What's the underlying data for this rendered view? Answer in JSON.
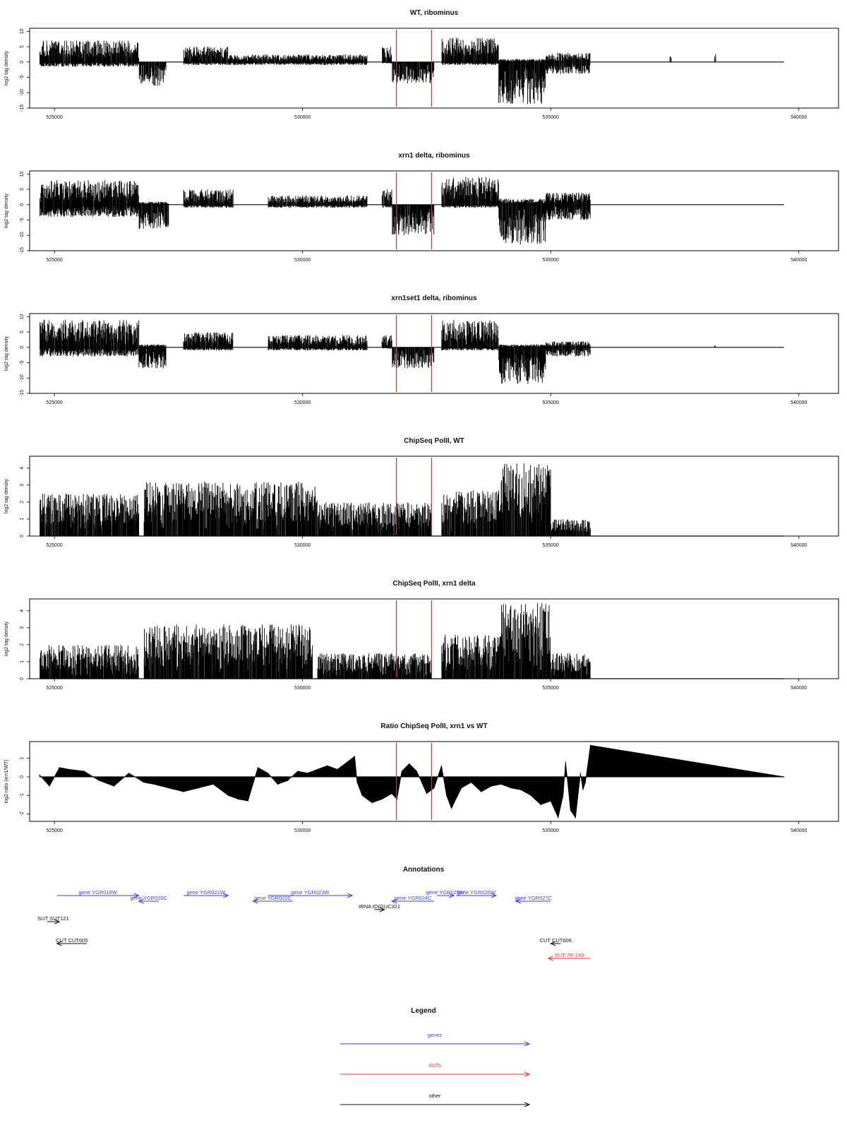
{
  "chart_data": [
    {
      "type": "bar",
      "title": "WT, ribominus",
      "ylabel": "log2 tag density",
      "xlim": [
        524500,
        540800
      ],
      "ylim": [
        -15,
        11
      ],
      "xticks": [
        525000,
        530000,
        535000,
        540000
      ],
      "yticks": [
        -15,
        -10,
        -5,
        0,
        5,
        10
      ],
      "grid": false,
      "markers": [
        531890,
        532600
      ],
      "segments": [
        {
          "x0": 524700,
          "x1": 526700,
          "top": 7,
          "bottom": -1.5
        },
        {
          "x0": 526700,
          "x1": 527250,
          "top": 0,
          "bottom": -8
        },
        {
          "x0": 527600,
          "x1": 528500,
          "top": 5,
          "bottom": -1
        },
        {
          "x0": 528500,
          "x1": 531300,
          "top": 2.5,
          "bottom": -1
        },
        {
          "x0": 531600,
          "x1": 531800,
          "top": 5,
          "bottom": -0.5
        },
        {
          "x0": 531800,
          "x1": 532650,
          "top": 0,
          "bottom": -7
        },
        {
          "x0": 532800,
          "x1": 533950,
          "top": 8,
          "bottom": -1
        },
        {
          "x0": 533950,
          "x1": 534900,
          "top": 1,
          "bottom": -14
        },
        {
          "x0": 534900,
          "x1": 535800,
          "top": 3,
          "bottom": -4
        },
        {
          "x0": 537400,
          "x1": 537430,
          "top": 2,
          "bottom": 0
        },
        {
          "x0": 538300,
          "x1": 538330,
          "top": 3,
          "bottom": 0
        }
      ]
    },
    {
      "type": "bar",
      "title": "xrn1 delta, ribominus",
      "ylabel": "log2 tag density",
      "xlim": [
        524500,
        540800
      ],
      "ylim": [
        -15,
        11
      ],
      "xticks": [
        525000,
        530000,
        535000,
        540000
      ],
      "yticks": [
        -15,
        -10,
        -5,
        0,
        5,
        10
      ],
      "grid": false,
      "markers": [
        531890,
        532600
      ],
      "segments": [
        {
          "x0": 524700,
          "x1": 526700,
          "top": 8,
          "bottom": -4
        },
        {
          "x0": 526700,
          "x1": 527300,
          "top": 1,
          "bottom": -8
        },
        {
          "x0": 527600,
          "x1": 528600,
          "top": 5,
          "bottom": -1
        },
        {
          "x0": 529300,
          "x1": 531300,
          "top": 3,
          "bottom": -1
        },
        {
          "x0": 531600,
          "x1": 531800,
          "top": 5,
          "bottom": -1
        },
        {
          "x0": 531800,
          "x1": 532650,
          "top": 0,
          "bottom": -10
        },
        {
          "x0": 532800,
          "x1": 533950,
          "top": 9,
          "bottom": -1
        },
        {
          "x0": 533950,
          "x1": 534900,
          "top": 2,
          "bottom": -13
        },
        {
          "x0": 534900,
          "x1": 535800,
          "top": 4,
          "bottom": -5
        }
      ]
    },
    {
      "type": "bar",
      "title": "xrn1set1 delta, ribominus",
      "ylabel": "log2 tag density",
      "xlim": [
        524500,
        540800
      ],
      "ylim": [
        -15,
        11
      ],
      "xticks": [
        525000,
        530000,
        535000,
        540000
      ],
      "yticks": [
        -15,
        -10,
        -5,
        0,
        5,
        10
      ],
      "grid": false,
      "markers": [
        531890,
        532600
      ],
      "segments": [
        {
          "x0": 524700,
          "x1": 526700,
          "top": 9,
          "bottom": -3
        },
        {
          "x0": 526700,
          "x1": 527250,
          "top": 1,
          "bottom": -7
        },
        {
          "x0": 527600,
          "x1": 528600,
          "top": 5,
          "bottom": -1
        },
        {
          "x0": 529300,
          "x1": 531300,
          "top": 4,
          "bottom": -1
        },
        {
          "x0": 531600,
          "x1": 531800,
          "top": 4,
          "bottom": -0.5
        },
        {
          "x0": 531800,
          "x1": 532650,
          "top": 0,
          "bottom": -7
        },
        {
          "x0": 532800,
          "x1": 533950,
          "top": 9,
          "bottom": -1
        },
        {
          "x0": 533950,
          "x1": 534900,
          "top": 1,
          "bottom": -12
        },
        {
          "x0": 534900,
          "x1": 535800,
          "top": 2,
          "bottom": -3
        },
        {
          "x0": 538300,
          "x1": 538330,
          "top": 1,
          "bottom": 0
        }
      ]
    },
    {
      "type": "bar",
      "title": "ChipSeq PolII, WT",
      "ylabel": "log2 tag density",
      "xlim": [
        524500,
        540800
      ],
      "ylim": [
        0,
        4.7
      ],
      "xticks": [
        525000,
        530000,
        535000,
        540000
      ],
      "yticks": [
        0,
        1,
        2,
        3,
        4
      ],
      "grid": false,
      "markers": [
        531890,
        532600
      ],
      "segments": [
        {
          "x0": 524700,
          "x1": 526700,
          "top": 2.5,
          "bottom": 0
        },
        {
          "x0": 526800,
          "x1": 530300,
          "top": 3.2,
          "bottom": 0
        },
        {
          "x0": 530300,
          "x1": 532600,
          "top": 2,
          "bottom": 0
        },
        {
          "x0": 532800,
          "x1": 534000,
          "top": 2.7,
          "bottom": 0
        },
        {
          "x0": 534000,
          "x1": 535000,
          "top": 4.3,
          "bottom": 0
        },
        {
          "x0": 535000,
          "x1": 535800,
          "top": 1,
          "bottom": 0
        }
      ]
    },
    {
      "type": "bar",
      "title": "ChipSeq PolII, xrn1 delta",
      "ylabel": "log2 tag density",
      "xlim": [
        524500,
        540800
      ],
      "ylim": [
        0,
        4.7
      ],
      "xticks": [
        525000,
        530000,
        535000,
        540000
      ],
      "yticks": [
        0,
        1,
        2,
        3,
        4
      ],
      "grid": false,
      "markers": [
        531890,
        532600
      ],
      "segments": [
        {
          "x0": 524700,
          "x1": 526700,
          "top": 2,
          "bottom": 0
        },
        {
          "x0": 526800,
          "x1": 530200,
          "top": 3.2,
          "bottom": 0
        },
        {
          "x0": 530300,
          "x1": 532600,
          "top": 1.5,
          "bottom": 0
        },
        {
          "x0": 532800,
          "x1": 534000,
          "top": 2.6,
          "bottom": 0
        },
        {
          "x0": 534000,
          "x1": 535000,
          "top": 4.5,
          "bottom": 0
        },
        {
          "x0": 535000,
          "x1": 535800,
          "top": 1.5,
          "bottom": 0
        }
      ]
    },
    {
      "type": "area",
      "title": "Ratio ChipSeq PolII, xrn1 vs WT",
      "ylabel": "log2 ratio (xrn1/WT)",
      "xlim": [
        524500,
        540800
      ],
      "ylim": [
        -2.4,
        1.9
      ],
      "xticks": [
        525000,
        530000,
        535000,
        540000
      ],
      "yticks": [
        -2,
        -1,
        0,
        1
      ],
      "grid": false,
      "markers": [
        531890,
        532600
      ],
      "x": [
        524700,
        524900,
        525100,
        525300,
        525600,
        525900,
        526200,
        526500,
        526800,
        527000,
        527300,
        527600,
        527900,
        528200,
        528500,
        528700,
        528900,
        529000,
        529100,
        529300,
        529500,
        529700,
        529900,
        530100,
        530300,
        530500,
        530700,
        530900,
        531050,
        531100,
        531200,
        531400,
        531600,
        531800,
        531900,
        532000,
        532150,
        532300,
        532500,
        532650,
        532800,
        532900,
        533000,
        533200,
        533400,
        533600,
        533800,
        534000,
        534200,
        534400,
        534600,
        534800,
        535000,
        535150,
        535250,
        535300,
        535400,
        535500,
        535600,
        535650,
        535700,
        535800,
        539700
      ],
      "values": [
        0.1,
        -0.5,
        0.5,
        0.4,
        0.3,
        -0.2,
        -0.5,
        0.2,
        -0.3,
        -0.4,
        -0.6,
        -0.8,
        -0.6,
        -0.4,
        -1.0,
        -1.2,
        -1.3,
        -0.4,
        0.5,
        0.2,
        -0.4,
        -0.2,
        0.3,
        0.2,
        0.4,
        0.6,
        0.4,
        0.8,
        1.1,
        -0.3,
        -1.0,
        -1.4,
        -1.2,
        -0.9,
        -1.2,
        0.3,
        0.7,
        0.3,
        -0.9,
        -0.6,
        0.6,
        -1.0,
        -1.7,
        -0.6,
        -0.3,
        -0.8,
        -0.5,
        -0.4,
        -0.6,
        -0.7,
        -1.0,
        -1.5,
        -1.3,
        -2.2,
        -1.0,
        0.8,
        -1.8,
        -2.2,
        0.2,
        -0.7,
        -0.3,
        1.7,
        0
      ]
    }
  ],
  "annotations": {
    "title": "Annotations",
    "items": [
      {
        "label": "gene YGR019W",
        "x0": 525050,
        "x1": 526700,
        "row": 0,
        "dir": "right",
        "color": "#3a3aff"
      },
      {
        "label": "gene YGR020C",
        "x0": 526700,
        "x1": 527100,
        "row": 1,
        "dir": "left",
        "color": "#3a3aff"
      },
      {
        "label": "gene YGR021W",
        "x0": 527600,
        "x1": 528500,
        "row": 0,
        "dir": "right",
        "color": "#3a3aff"
      },
      {
        "label": "gene YGR022C",
        "x0": 529000,
        "x1": 529800,
        "row": 1,
        "dir": "left",
        "color": "#3a3aff"
      },
      {
        "label": "gene YGR023W",
        "x0": 529300,
        "x1": 531000,
        "row": 0,
        "dir": "right",
        "color": "#3a3aff"
      },
      {
        "label": "gene YGR024C",
        "x0": 531800,
        "x1": 532650,
        "row": 1,
        "dir": "left",
        "color": "#3a3aff"
      },
      {
        "label": "gene YGR025W",
        "x0": 532700,
        "x1": 533050,
        "row": 0,
        "dir": "right",
        "color": "#3a3aff"
      },
      {
        "label": "gene YGR026W",
        "x0": 533100,
        "x1": 533900,
        "row": 0,
        "dir": "right",
        "color": "#3a3aff"
      },
      {
        "label": "gene YGR027C",
        "x0": 534300,
        "x1": 535000,
        "row": 1,
        "dir": "left",
        "color": "#3a3aff"
      },
      {
        "label": "tRNA tD(GUC)G1",
        "x0": 531450,
        "x1": 531650,
        "row": 2,
        "dir": "right",
        "color": "#111111"
      },
      {
        "label": "SUT SUT121",
        "x0": 524850,
        "x1": 525100,
        "row": 3,
        "dir": "right",
        "color": "#111111"
      },
      {
        "label": "CUT CUT605",
        "x0": 525050,
        "x1": 525650,
        "row": 4,
        "dir": "left",
        "color": "#111111"
      },
      {
        "label": "CUT CUT606",
        "x0": 535000,
        "x1": 535200,
        "row": 4,
        "dir": "left",
        "color": "#111111"
      },
      {
        "label": "XUT 7R-243",
        "x0": 534950,
        "x1": 535800,
        "row": 5,
        "dir": "left",
        "color": "#ff2a2a"
      }
    ]
  },
  "legend": {
    "title": "Legend",
    "items": [
      {
        "label": "genes",
        "color": "#3a3aff"
      },
      {
        "label": "XUTs",
        "color": "#ff2a2a"
      },
      {
        "label": "other",
        "color": "#111111"
      }
    ]
  }
}
